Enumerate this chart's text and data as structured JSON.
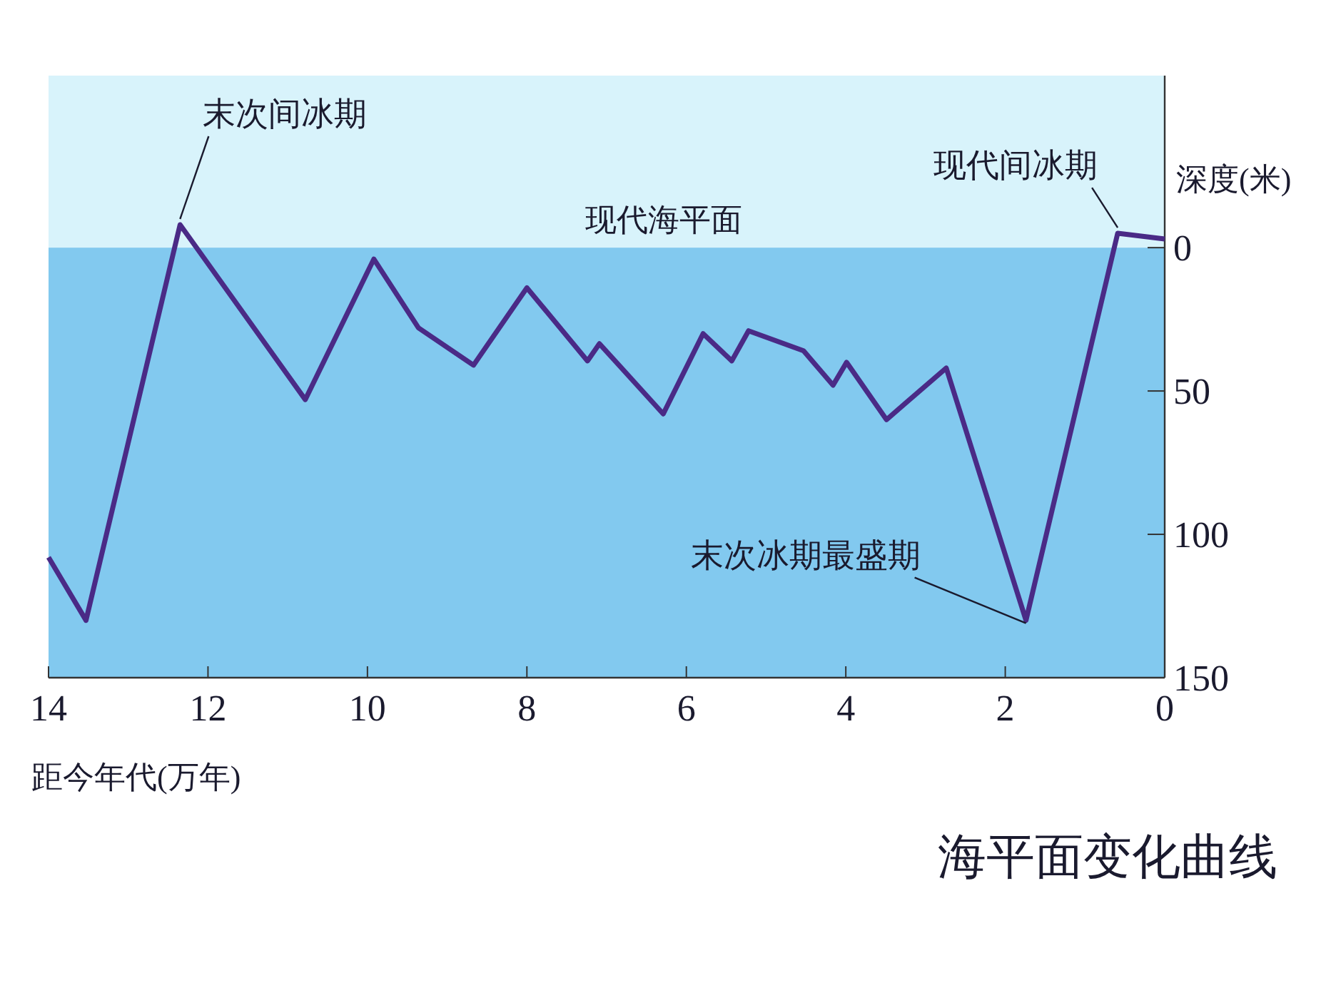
{
  "chart_data": {
    "type": "line",
    "title": "海平面变化曲线",
    "xlabel": "距今年代(万年)",
    "ylabel": "深度(米)",
    "x": [
      14,
      13.53,
      12.35,
      10.78,
      9.92,
      9.36,
      8.67,
      8,
      7.24,
      7.09,
      6.29,
      5.79,
      5.43,
      5.22,
      4.53,
      4.16,
      3.99,
      3.49,
      2.74,
      1.74,
      0.59,
      0
    ],
    "series": [
      {
        "color": "#4a2a86",
        "values": [
          108,
          130,
          -8,
          53,
          4,
          28,
          41,
          14,
          39.5,
          33.5,
          58,
          30,
          39.5,
          29,
          36,
          48,
          40,
          60,
          42,
          130,
          -5,
          -3
        ]
      }
    ],
    "xlim": [
      14,
      0
    ],
    "xticks": [
      14,
      12,
      10,
      8,
      6,
      4,
      2,
      0
    ],
    "ylim": [
      150,
      -60
    ],
    "yticks": [
      0,
      50,
      100,
      150
    ],
    "bands": [
      {
        "axis": "y",
        "from": -60,
        "to": 0,
        "label": "现代海平面",
        "color": "#d8f3fb"
      },
      {
        "axis": "y",
        "from": 0,
        "to": 150,
        "color": "#82c9ef"
      }
    ],
    "annotations": [
      {
        "text": "末次间冰期",
        "x": 12.35,
        "y": -8
      },
      {
        "text": "现代间冰期",
        "x": 0.59,
        "y": -5
      },
      {
        "text": "末次冰期最盛期",
        "x": 1.74,
        "y": 130
      }
    ],
    "grid": false,
    "marker": "none",
    "line_style": "solid"
  }
}
